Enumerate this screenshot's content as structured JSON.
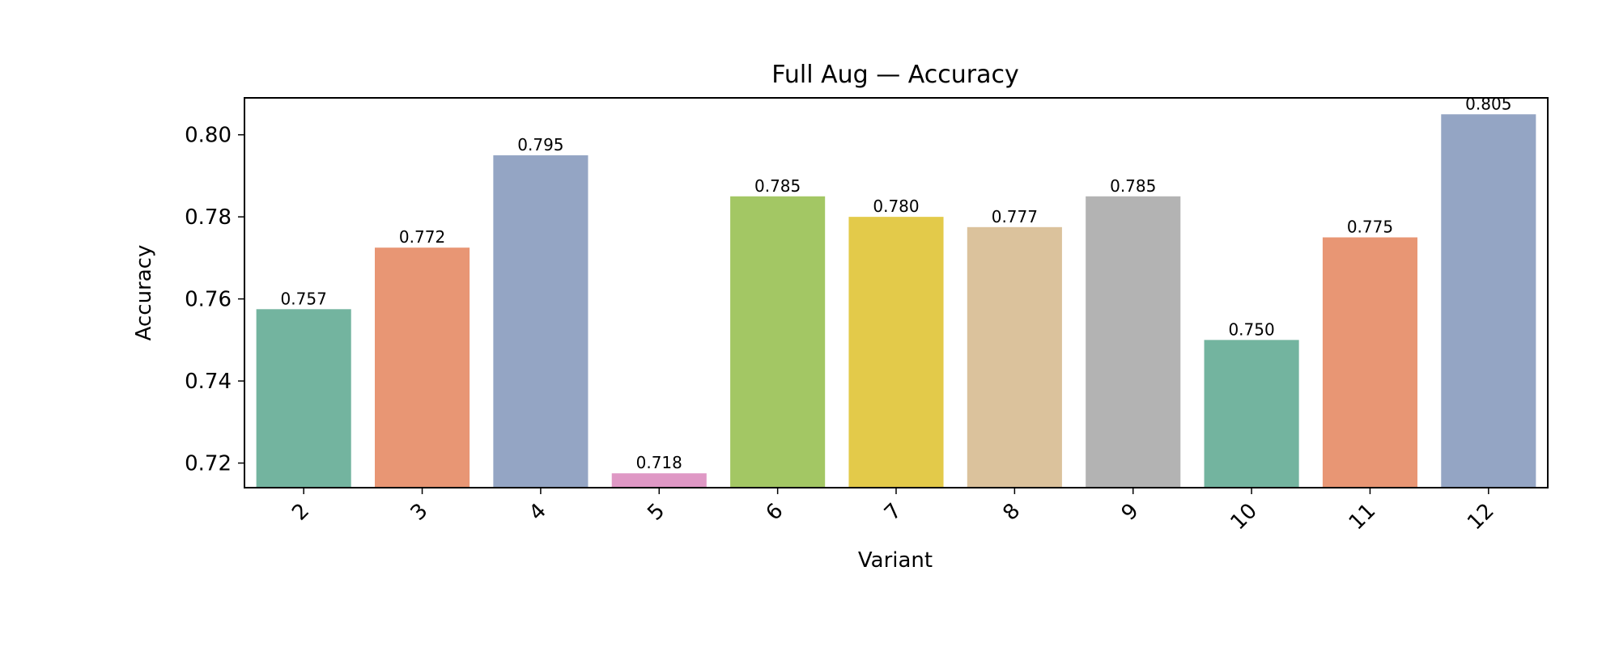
{
  "chart_data": {
    "type": "bar",
    "title": "Full Aug — Accuracy",
    "xlabel": "Variant",
    "ylabel": "Accuracy",
    "categories": [
      "2",
      "3",
      "4",
      "5",
      "6",
      "7",
      "8",
      "9",
      "10",
      "11",
      "12"
    ],
    "values": [
      0.7575,
      0.7725,
      0.795,
      0.7175,
      0.785,
      0.78,
      0.7775,
      0.785,
      0.75,
      0.775,
      0.805
    ],
    "value_labels": [
      "0.757",
      "0.772",
      "0.795",
      "0.718",
      "0.785",
      "0.780",
      "0.777",
      "0.785",
      "0.750",
      "0.775",
      "0.805"
    ],
    "colors": [
      "#73b49f",
      "#e89674",
      "#94a5c4",
      "#df98c5",
      "#a3c764",
      "#e3ca4a",
      "#dbc29c",
      "#b3b3b3",
      "#73b49f",
      "#e89674",
      "#94a5c4"
    ],
    "ylim": [
      0.714,
      0.809
    ],
    "yticks": [
      0.72,
      0.74,
      0.76,
      0.78,
      0.8
    ],
    "ytick_labels": [
      "0.72",
      "0.74",
      "0.76",
      "0.78",
      "0.80"
    ],
    "grid": false,
    "legend": "none"
  }
}
